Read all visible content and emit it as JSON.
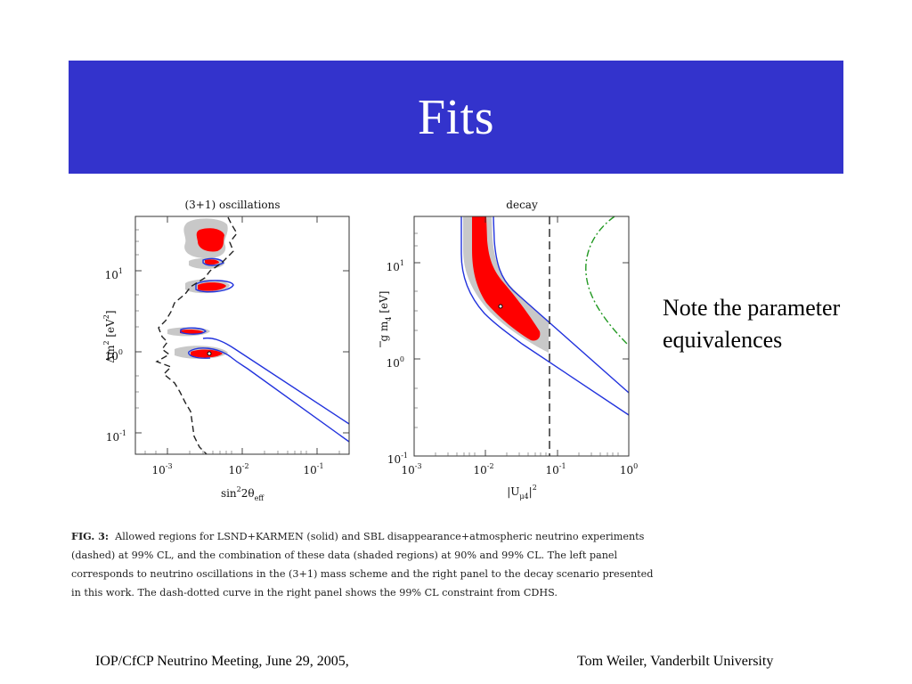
{
  "slide": {
    "title": "Fits",
    "note": "Note the parameter equivalences",
    "footer_left": "IOP/CfCP Neutrino Meeting, June 29, 2005,",
    "footer_right": "Tom Weiler, Vanderbilt University"
  },
  "figure": {
    "left_panel": {
      "title": "(3+1) oscillations",
      "x_ticks": [
        {
          "base": "10",
          "exp": "-3"
        },
        {
          "base": "10",
          "exp": "-2"
        },
        {
          "base": "10",
          "exp": "-1"
        }
      ],
      "y_ticks": [
        {
          "base": "10",
          "exp": "1"
        },
        {
          "base": "10",
          "exp": "0"
        },
        {
          "base": "10",
          "exp": "-1"
        }
      ],
      "xlabel": {
        "a": "sin",
        "b": "2",
        "c": "2θ",
        "d": "eff"
      },
      "ylabel": {
        "a": "Δm",
        "b": "2",
        "c": " [eV",
        "d": "2",
        "e": "]"
      }
    },
    "right_panel": {
      "title": "decay",
      "x_ticks": [
        {
          "base": "10",
          "exp": "-3"
        },
        {
          "base": "10",
          "exp": "-2"
        },
        {
          "base": "10",
          "exp": "-1"
        },
        {
          "base": "10",
          "exp": "0"
        }
      ],
      "y_ticks": [
        {
          "base": "10",
          "exp": "1"
        },
        {
          "base": "10",
          "exp": "0"
        },
        {
          "base": "10",
          "exp": "-1"
        }
      ],
      "xlabel": {
        "a": "|U",
        "b": "μ4",
        "c": "|",
        "d": "2"
      },
      "ylabel": {
        "a": "g m",
        "b": "4",
        "c": " [eV]"
      }
    },
    "caption": {
      "label": "FIG. 3:",
      "text": "Allowed regions for LSND+KARMEN (solid) and SBL disappearance+atmospheric neutrino experiments (dashed) at 99% CL, and the combination of these data (shaded regions) at 90% and 99% CL. The left panel corresponds to neutrino oscillations in the (3+1) mass scheme and the right panel to the decay scenario presented in this work. The dash-dotted curve in the right panel shows the 99% CL constraint from CDHS."
    },
    "colors": {
      "shade_90": "#ff0000",
      "shade_99": "#c8c8c8",
      "solid_curve": "#2233dd",
      "dashed_curve": "#222222",
      "cdhs_curve": "#229922"
    }
  }
}
